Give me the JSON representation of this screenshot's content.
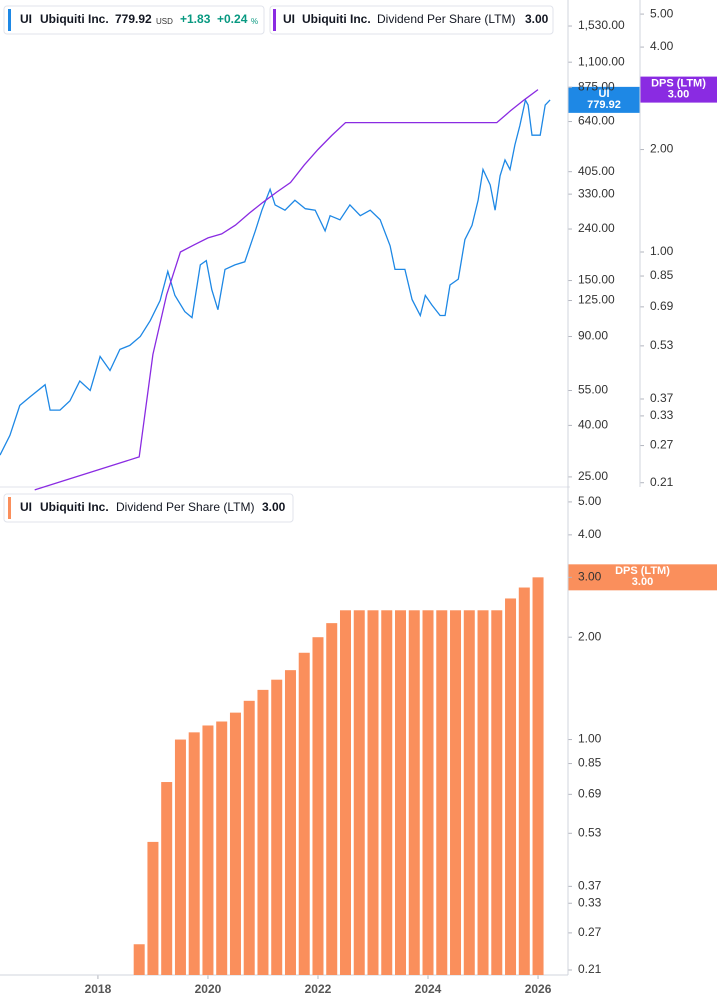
{
  "chart_data": [
    {
      "type": "line",
      "log_scale": true,
      "xlim": [
        2016.22,
        2026.49
      ],
      "ylim": [
        22.8,
        1940
      ],
      "yticks": [
        {
          "value": 1530,
          "label": "1,530.00"
        },
        {
          "value": 1100,
          "label": "1,100.00"
        },
        {
          "value": 875,
          "label": "875.00"
        },
        {
          "value": 640,
          "label": "640.00"
        },
        {
          "value": 405,
          "label": "405.00"
        },
        {
          "value": 330,
          "label": "330.00"
        },
        {
          "value": 240,
          "label": "240.00"
        },
        {
          "value": 150,
          "label": "150.00"
        },
        {
          "value": 125,
          "label": "125.00"
        },
        {
          "value": 90,
          "label": "90.00"
        },
        {
          "value": 55,
          "label": "55.00"
        },
        {
          "value": 40,
          "label": "40.00"
        },
        {
          "value": 25,
          "label": "25.00"
        }
      ],
      "y2lim": [
        0.204,
        5.5
      ],
      "y2ticks": [
        {
          "value": 5,
          "label": "5.00"
        },
        {
          "value": 4,
          "label": "4.00"
        },
        {
          "value": 2,
          "label": "2.00"
        },
        {
          "value": 1,
          "label": "1.00"
        },
        0.85,
        0.69,
        0.53,
        0.37,
        0.33,
        0.27,
        0.21
      ],
      "series": [
        {
          "name": "Ubiquiti Inc.",
          "ticker": "UI",
          "color": "#1e88e5",
          "last_label": "779.92",
          "currency": "USD",
          "change": "+1.83",
          "change_pct": "+0.24",
          "pct_unit": "%",
          "badge": [
            "UI",
            "779.92"
          ],
          "x": [
            2016.22,
            2016.4,
            2016.58,
            2016.77,
            2017.04,
            2017.13,
            2017.31,
            2017.49,
            2017.67,
            2017.86,
            2018.04,
            2018.22,
            2018.4,
            2018.58,
            2018.77,
            2018.95,
            2019.13,
            2019.27,
            2019.4,
            2019.58,
            2019.71,
            2019.86,
            2019.97,
            2020.07,
            2020.18,
            2020.31,
            2020.49,
            2020.67,
            2020.86,
            2020.98,
            2021.13,
            2021.22,
            2021.4,
            2021.58,
            2021.77,
            2021.95,
            2022.13,
            2022.22,
            2022.4,
            2022.58,
            2022.77,
            2022.95,
            2023.13,
            2023.31,
            2023.4,
            2023.58,
            2023.71,
            2023.86,
            2023.95,
            2024.07,
            2024.22,
            2024.31,
            2024.4,
            2024.55,
            2024.67,
            2024.8,
            2024.91,
            2025.0,
            2025.13,
            2025.22,
            2025.31,
            2025.4,
            2025.49,
            2025.58,
            2025.67,
            2025.77,
            2025.82,
            2025.89,
            2026.04,
            2026.13,
            2026.22
          ],
          "values": [
            30.5,
            36.5,
            48,
            52,
            58,
            46,
            46,
            50,
            60,
            55,
            75,
            66,
            80,
            83,
            90,
            104,
            125,
            163,
            131,
            113,
            107,
            173,
            180,
            138,
            115,
            166,
            173,
            178,
            236,
            285,
            345,
            299,
            285,
            312,
            289,
            285,
            236,
            271,
            261,
            299,
            271,
            285,
            261,
            206,
            166,
            166,
            126,
            109,
            131,
            120,
            109,
            109,
            144,
            152,
            218,
            248,
            312,
            413,
            359,
            285,
            390,
            451,
            413,
            517,
            618,
            778,
            744,
            565,
            565,
            744,
            779.92
          ]
        },
        {
          "name": "Dividend Per Share (LTM)",
          "ticker": "UI",
          "color": "#8a2be2",
          "axis": "y2",
          "last_label": "3.00",
          "badge": [
            "DPS (LTM)",
            "3.00"
          ],
          "x": [
            2016.85,
            2018.75,
            2019.0,
            2019.25,
            2019.5,
            2019.75,
            2020.0,
            2020.25,
            2020.5,
            2020.75,
            2021.0,
            2021.25,
            2021.5,
            2021.75,
            2022.0,
            2022.25,
            2022.5,
            2022.75,
            2023.0,
            2023.25,
            2023.5,
            2023.75,
            2024.0,
            2024.25,
            2024.5,
            2024.75,
            2025.0,
            2025.25,
            2025.5,
            2025.75,
            2026.0
          ],
          "values": [
            0.2,
            0.25,
            0.5,
            0.75,
            1.0,
            1.05,
            1.1,
            1.13,
            1.2,
            1.3,
            1.4,
            1.5,
            1.6,
            1.8,
            2.0,
            2.2,
            2.4,
            2.4,
            2.4,
            2.4,
            2.4,
            2.4,
            2.4,
            2.4,
            2.4,
            2.4,
            2.4,
            2.4,
            2.6,
            2.8,
            3.0
          ]
        }
      ]
    },
    {
      "type": "bar",
      "log_scale": true,
      "xlim": [
        2016.22,
        2026.49
      ],
      "xticks": [
        2018,
        2020,
        2022,
        2024,
        2026
      ],
      "ylim": [
        0.203,
        5.42
      ],
      "yticks": [
        {
          "value": 5,
          "label": "5.00"
        },
        {
          "value": 4,
          "label": "4.00"
        },
        {
          "value": 3,
          "label": "3.00"
        },
        {
          "value": 2,
          "label": "2.00"
        },
        {
          "value": 1,
          "label": "1.00"
        },
        0.85,
        0.69,
        0.53,
        0.37,
        0.33,
        0.27,
        0.21
      ],
      "series": [
        {
          "name": "Dividend Per Share (LTM)",
          "ticker": "UI",
          "company": "Ubiquiti Inc.",
          "color": "#fa8f5c",
          "last_label": "3.00",
          "badge": [
            "DPS (LTM)",
            "3.00"
          ],
          "x": [
            2018.75,
            2019.0,
            2019.25,
            2019.5,
            2019.75,
            2020.0,
            2020.25,
            2020.5,
            2020.75,
            2021.0,
            2021.25,
            2021.5,
            2021.75,
            2022.0,
            2022.25,
            2022.5,
            2022.75,
            2023.0,
            2023.25,
            2023.5,
            2023.75,
            2024.0,
            2024.25,
            2024.5,
            2024.75,
            2025.0,
            2025.25,
            2025.5,
            2025.75,
            2026.0
          ],
          "values": [
            0.25,
            0.5,
            0.75,
            1.0,
            1.05,
            1.1,
            1.13,
            1.2,
            1.3,
            1.4,
            1.5,
            1.6,
            1.8,
            2.0,
            2.2,
            2.4,
            2.4,
            2.4,
            2.4,
            2.4,
            2.4,
            2.4,
            2.4,
            2.4,
            2.4,
            2.4,
            2.4,
            2.6,
            2.8,
            3.0
          ]
        }
      ]
    }
  ]
}
